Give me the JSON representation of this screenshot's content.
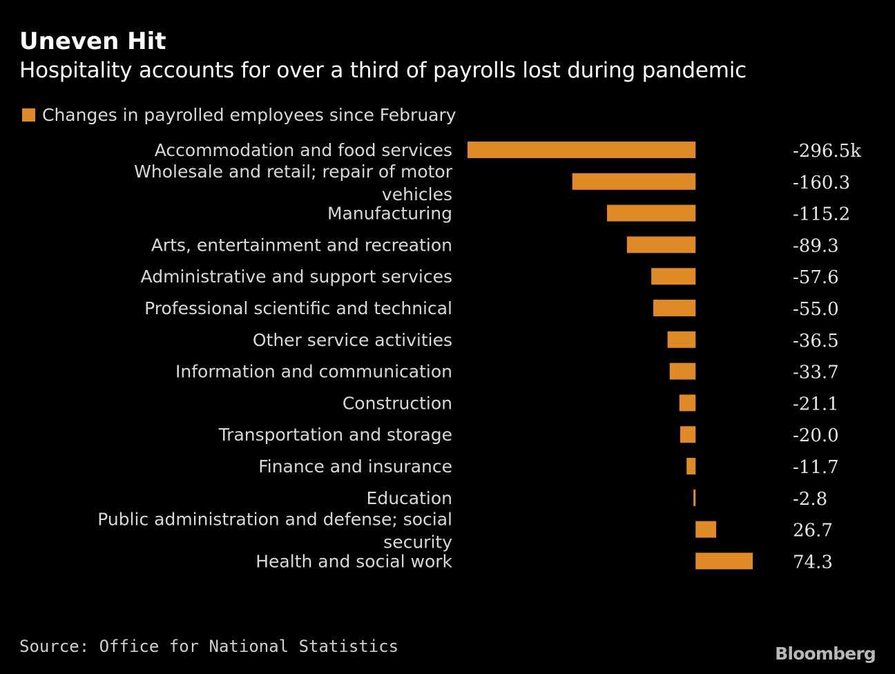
{
  "title": "Uneven Hit",
  "subtitle": "Hospitality accounts for over a third of payrolls lost during pandemic",
  "source": "Source: Office for National Statistics",
  "brand": "Bloomberg",
  "colors": {
    "background": "#000000",
    "bar": "#e08a27",
    "text": "#d9d9d9"
  },
  "chart_data": {
    "type": "bar",
    "orientation": "horizontal",
    "title": "Uneven Hit",
    "subtitle": "Hospitality accounts for over a third of payrolls lost during pandemic",
    "legend": [
      "Changes in payrolled employees since February"
    ],
    "legend_position": "top-left",
    "unit": "k",
    "categories": [
      "Accommodation and food services",
      "Wholesale and retail; repair of motor vehicles",
      "Manufacturing",
      "Arts, entertainment and recreation",
      "Administrative and support services",
      "Professional scientific and technical",
      "Other service activities",
      "Information and communication",
      "Construction",
      "Transportation and storage",
      "Finance and insurance",
      "Education",
      "Public administration and defense; social security",
      "Health and social work"
    ],
    "values": [
      -296.5,
      -160.3,
      -115.2,
      -89.3,
      -57.6,
      -55.0,
      -36.5,
      -33.7,
      -21.1,
      -20.0,
      -11.7,
      -2.8,
      26.7,
      74.3
    ],
    "value_labels": [
      "-296.5k",
      "-160.3",
      "-115.2",
      "-89.3",
      "-57.6",
      "-55.0",
      "-36.5",
      "-33.7",
      "-21.1",
      "-20.0",
      "-11.7",
      "-2.8",
      "26.7",
      "74.3"
    ],
    "xlim": [
      -296.5,
      74.3
    ],
    "grid": false
  }
}
